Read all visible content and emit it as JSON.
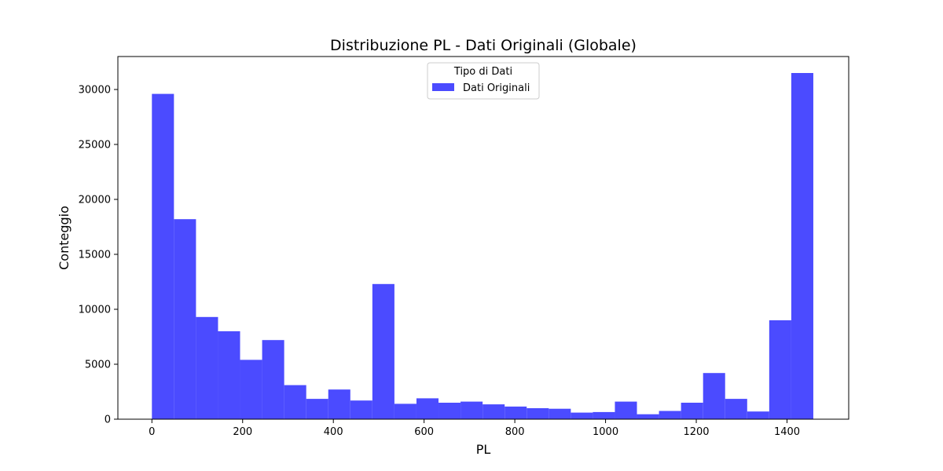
{
  "chart_data": {
    "type": "bar",
    "title": "Distribuzione PL - Dati Originali (Globale)",
    "xlabel": "PL",
    "ylabel": "Conteggio",
    "xlim": [
      -75,
      1536
    ],
    "ylim": [
      0,
      33000
    ],
    "xticks": [
      0,
      200,
      400,
      600,
      800,
      1000,
      1200,
      1400
    ],
    "yticks": [
      0,
      5000,
      10000,
      15000,
      20000,
      25000,
      30000
    ],
    "grid": false,
    "legend": {
      "title": "Tipo di Dati",
      "placement": "upper center",
      "entries": [
        "Dati Originali"
      ]
    },
    "series": [
      {
        "name": "Dati Originali",
        "color": "#4b4bff",
        "bin_edges": [
          0,
          48.6,
          97.2,
          145.8,
          194.4,
          243,
          291.6,
          340.2,
          388.8,
          437.4,
          486,
          534.6,
          583.2,
          631.8,
          680.4,
          729,
          777.6,
          826.2,
          874.8,
          923.4,
          972,
          1020.6,
          1069.2,
          1117.8,
          1166.4,
          1215,
          1263.6,
          1312.2,
          1360.8,
          1409.4,
          1458
        ],
        "values": [
          29600,
          18200,
          9300,
          8000,
          5400,
          7200,
          3100,
          1850,
          2700,
          1700,
          12300,
          1400,
          1900,
          1500,
          1600,
          1350,
          1150,
          1000,
          950,
          600,
          650,
          1600,
          450,
          750,
          1500,
          4200,
          1850,
          700,
          9000,
          31500
        ]
      }
    ]
  }
}
